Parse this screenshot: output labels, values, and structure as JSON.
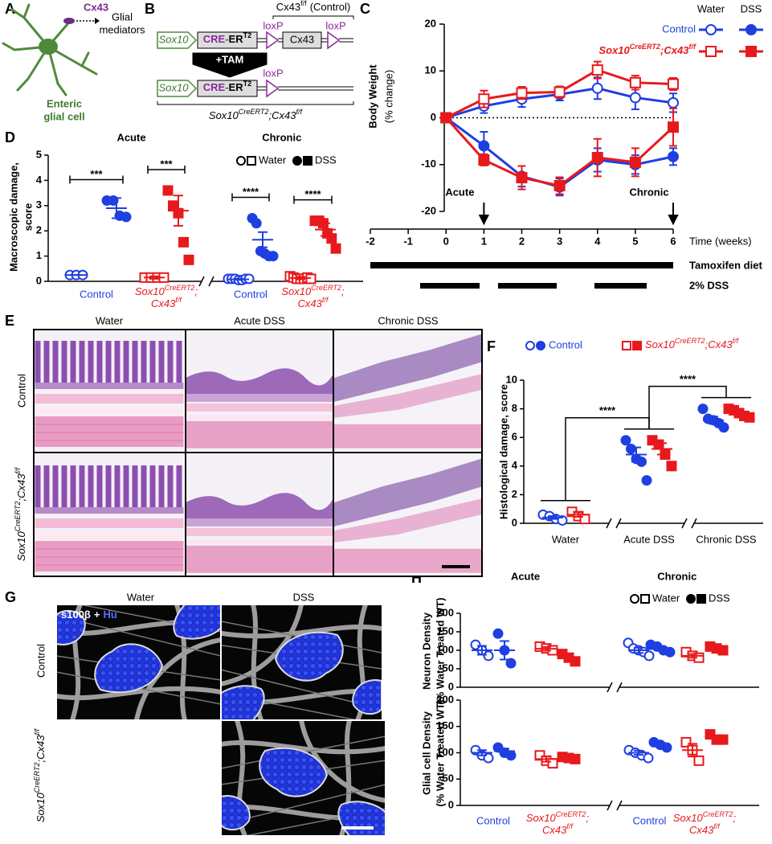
{
  "figure": {
    "panel_labels": [
      "A",
      "B",
      "C",
      "D",
      "E",
      "F",
      "G",
      "H"
    ],
    "genotype": {
      "base": "Sox10",
      "sup1": "CreERT2",
      "sep": ";",
      "gene": "Cx43",
      "sup2": "f/f"
    },
    "a": {
      "protein": "Cx43",
      "mediators": [
        "Glial",
        "mediators"
      ],
      "cell": [
        "Enteric",
        "glial cell"
      ]
    },
    "b": {
      "control": {
        "gene": "Cx43",
        "sup": "f/f",
        "note": "(Control)"
      },
      "promoter": "Sox10",
      "cre": "CRE-",
      "er": "ER",
      "er_sup": "T2",
      "loxp": "loxP",
      "gene": "Cx43",
      "treatment": "+TAM"
    },
    "e": {
      "columns": [
        "Water",
        "Acute DSS",
        "Chronic DSS"
      ],
      "control": "Control"
    },
    "g": {
      "columns": [
        "Water",
        "DSS"
      ],
      "stain": [
        "s100β",
        "+",
        "Hu"
      ],
      "control": "Control"
    }
  },
  "chart_data": [
    {
      "type": "line",
      "ylabel": [
        "Body Weight",
        "(% change)"
      ],
      "xlabel": "Time (weeks)",
      "xlim": [
        -2,
        6
      ],
      "xticks": [
        -2,
        -1,
        0,
        1,
        2,
        3,
        4,
        5,
        6
      ],
      "ylim": [
        -20,
        20
      ],
      "yticks": [
        -20,
        -10,
        0,
        10,
        20
      ],
      "x": [
        0,
        1,
        2,
        3,
        4,
        5,
        6
      ],
      "series": [
        {
          "color": "#1f3fe0",
          "marker": "circle",
          "filled": false,
          "values": [
            0,
            2.5,
            4,
            5,
            6.3,
            4.3,
            3.2
          ],
          "errors": [
            0,
            1.5,
            1.7,
            1.3,
            2.3,
            2.5,
            2
          ]
        },
        {
          "color": "#1f3fe0",
          "marker": "circle",
          "filled": true,
          "values": [
            0,
            -6,
            -12.5,
            -14.8,
            -9,
            -10,
            -8.3
          ],
          "errors": [
            0,
            3,
            2.2,
            1.8,
            2.5,
            2,
            1.8
          ]
        },
        {
          "color": "#e8191c",
          "marker": "square",
          "filled": false,
          "values": [
            0,
            4,
            5.3,
            5.5,
            10.2,
            7.5,
            7.2
          ],
          "errors": [
            0,
            1.8,
            1.3,
            1.2,
            1.8,
            1.5,
            1.3
          ]
        },
        {
          "color": "#e8191c",
          "marker": "square",
          "filled": true,
          "values": [
            0,
            -9,
            -12.8,
            -14.5,
            -8.5,
            -9.5,
            -2
          ],
          "errors": [
            0,
            1.2,
            2.5,
            1.8,
            4,
            3,
            4
          ]
        }
      ],
      "legend": {
        "columns": [
          "Water",
          "DSS"
        ],
        "rows": [
          "Control"
        ]
      },
      "annotations": [
        {
          "text": "Acute",
          "x": 1
        },
        {
          "text": "Chronic",
          "x": 6
        }
      ],
      "timeline": [
        "Tamoxifen diet",
        "2% DSS"
      ]
    },
    {
      "type": "dotplot",
      "title": [
        "Acute",
        "Chronic"
      ],
      "ylabel": [
        "Macroscopic damage,",
        "score"
      ],
      "ylim": [
        0,
        5
      ],
      "yticks": [
        0,
        1,
        2,
        3,
        4,
        5
      ],
      "legend": {
        "water": "Water",
        "dss": "DSS"
      },
      "xlabel": "Control",
      "groups": [
        {
          "color": "#1f3fe0",
          "marker": "circle",
          "filled": false,
          "points": [
            0.25,
            0.25,
            0.25
          ],
          "mean": 0.25,
          "sem": 0
        },
        {
          "color": "#1f3fe0",
          "marker": "circle",
          "filled": true,
          "points": [
            3.2,
            3.2,
            2.6,
            2.55
          ],
          "mean": 2.9,
          "sem": 0.4
        },
        {
          "color": "#e8191c",
          "marker": "square",
          "filled": false,
          "points": [
            0.15,
            0.15,
            0.15,
            0.15
          ],
          "mean": 0.15,
          "sem": 0.05
        },
        {
          "color": "#e8191c",
          "marker": "square",
          "filled": true,
          "points": [
            3.6,
            3.0,
            2.7,
            1.55,
            0.85
          ],
          "mean": 2.8,
          "sem": 0.6
        },
        {
          "color": "#1f3fe0",
          "marker": "circle",
          "filled": false,
          "points": [
            0.1,
            0.1,
            0.1,
            0.05,
            0.05,
            0.1,
            0.1
          ],
          "mean": 0.08,
          "sem": 0.02
        },
        {
          "color": "#1f3fe0",
          "marker": "circle",
          "filled": true,
          "points": [
            2.5,
            2.3,
            1.2,
            1.1,
            1.0,
            1.0
          ],
          "mean": 1.65,
          "sem": 0.3
        },
        {
          "color": "#e8191c",
          "marker": "square",
          "filled": false,
          "points": [
            0.2,
            0.15,
            0.1,
            0.1,
            0.1,
            0.15,
            0.1
          ],
          "mean": 0.13,
          "sem": 0.05
        },
        {
          "color": "#e8191c",
          "marker": "square",
          "filled": true,
          "points": [
            2.4,
            2.4,
            2.3,
            1.9,
            1.7,
            1.3
          ],
          "mean": 2.05,
          "sem": 0.25
        }
      ],
      "significance": [
        "***",
        "***",
        "****",
        "****"
      ]
    },
    {
      "type": "dotplot",
      "ylabel": [
        "Histological damage, score"
      ],
      "ylim": [
        0,
        10
      ],
      "yticks": [
        0,
        2,
        4,
        6,
        8,
        10
      ],
      "categories": [
        "Water",
        "Acute DSS",
        "Chronic DSS"
      ],
      "legend": {
        "control": "Control"
      },
      "groups": [
        {
          "color": "#1f3fe0",
          "marker": "circle",
          "filled": false,
          "points": [
            0.6,
            0.5,
            0.3,
            0.2
          ],
          "mean": 0.4,
          "sem": 0.1
        },
        {
          "color": "#e8191c",
          "marker": "square",
          "filled": false,
          "points": [
            0.8,
            0.5,
            0.3
          ],
          "mean": 0.6,
          "sem": 0.15
        },
        {
          "color": "#1f3fe0",
          "marker": "circle",
          "filled": true,
          "points": [
            5.8,
            5.2,
            4.5,
            4.3,
            3.0
          ],
          "mean": 4.8,
          "sem": 0.5
        },
        {
          "color": "#e8191c",
          "marker": "square",
          "filled": true,
          "points": [
            5.8,
            5.5,
            4.8,
            4.0
          ],
          "mean": 5.2,
          "sem": 0.4
        },
        {
          "color": "#1f3fe0",
          "marker": "circle",
          "filled": true,
          "points": [
            8.0,
            7.3,
            7.2,
            7.0,
            6.7
          ],
          "mean": 7.2,
          "sem": 0.25
        },
        {
          "color": "#e8191c",
          "marker": "square",
          "filled": true,
          "points": [
            8.0,
            7.9,
            7.7,
            7.5,
            7.4
          ],
          "mean": 7.6,
          "sem": 0.15
        }
      ],
      "significance": [
        "****",
        "****"
      ]
    },
    {
      "type": "dotplot",
      "title": [
        "Acute",
        "Chronic"
      ],
      "ylabel": [
        "Neuron Density",
        "(% Water Treated WT)"
      ],
      "ylim": [
        0,
        200
      ],
      "yticks": [
        0,
        50,
        100,
        150,
        200
      ],
      "legend": {
        "water": "Water",
        "dss": "DSS"
      },
      "groups": [
        {
          "color": "#1f3fe0",
          "marker": "circle",
          "filled": false,
          "points": [
            115,
            100,
            85
          ],
          "mean": 100,
          "sem": 12
        },
        {
          "color": "#1f3fe0",
          "marker": "circle",
          "filled": true,
          "points": [
            145,
            100,
            65
          ],
          "mean": 100,
          "sem": 25
        },
        {
          "color": "#e8191c",
          "marker": "square",
          "filled": false,
          "points": [
            110,
            105,
            100
          ],
          "mean": 104,
          "sem": 5
        },
        {
          "color": "#e8191c",
          "marker": "square",
          "filled": true,
          "points": [
            90,
            80,
            70
          ],
          "mean": 80,
          "sem": 7
        },
        {
          "color": "#1f3fe0",
          "marker": "circle",
          "filled": false,
          "points": [
            120,
            105,
            100,
            95,
            85
          ],
          "mean": 100,
          "sem": 7
        },
        {
          "color": "#1f3fe0",
          "marker": "circle",
          "filled": true,
          "points": [
            115,
            110,
            100,
            95
          ],
          "mean": 105,
          "sem": 5
        },
        {
          "color": "#e8191c",
          "marker": "square",
          "filled": false,
          "points": [
            95,
            85,
            80
          ],
          "mean": 85,
          "sem": 5
        },
        {
          "color": "#e8191c",
          "marker": "square",
          "filled": true,
          "points": [
            110,
            105,
            100
          ],
          "mean": 105,
          "sem": 4
        }
      ]
    },
    {
      "type": "dotplot",
      "ylabel": [
        "Glial cell Density",
        "(% Water Treated WT)"
      ],
      "ylim": [
        0,
        200
      ],
      "yticks": [
        0,
        50,
        100,
        150,
        200
      ],
      "xlabel": "Control",
      "groups": [
        {
          "color": "#1f3fe0",
          "marker": "circle",
          "filled": false,
          "points": [
            105,
            95,
            90
          ],
          "mean": 100,
          "sem": 5
        },
        {
          "color": "#1f3fe0",
          "marker": "circle",
          "filled": true,
          "points": [
            110,
            100,
            95
          ],
          "mean": 103,
          "sem": 5
        },
        {
          "color": "#e8191c",
          "marker": "square",
          "filled": false,
          "points": [
            95,
            85,
            80
          ],
          "mean": 88,
          "sem": 5
        },
        {
          "color": "#e8191c",
          "marker": "square",
          "filled": true,
          "points": [
            92,
            90,
            88
          ],
          "mean": 90,
          "sem": 2
        },
        {
          "color": "#1f3fe0",
          "marker": "circle",
          "filled": false,
          "points": [
            105,
            100,
            95,
            90
          ],
          "mean": 100,
          "sem": 4
        },
        {
          "color": "#1f3fe0",
          "marker": "circle",
          "filled": true,
          "points": [
            120,
            115,
            110
          ],
          "mean": 115,
          "sem": 4
        },
        {
          "color": "#e8191c",
          "marker": "square",
          "filled": false,
          "points": [
            120,
            105,
            85
          ],
          "mean": 105,
          "sem": 12
        },
        {
          "color": "#e8191c",
          "marker": "square",
          "filled": true,
          "points": [
            135,
            125,
            125
          ],
          "mean": 127,
          "sem": 4
        }
      ]
    }
  ]
}
